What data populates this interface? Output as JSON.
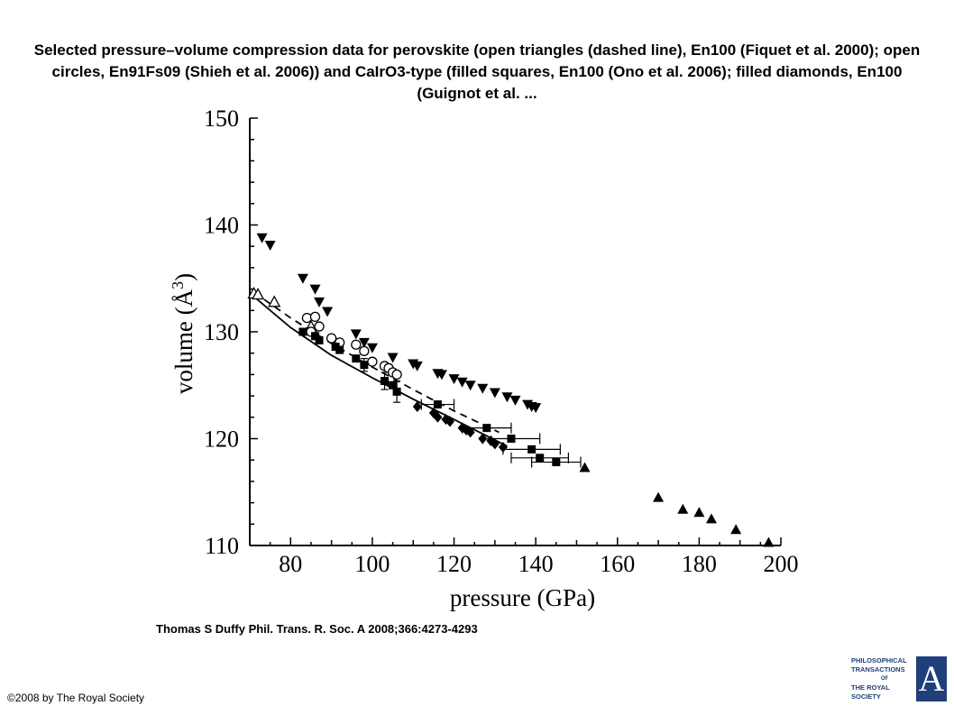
{
  "title": "Selected pressure–volume compression data for perovskite (open triangles (dashed line), En100 (Fiquet et al. 2000); open circles, En91Fs09 (Shieh et al. 2006)) and CaIrO3-type (filled squares, En100 (Ono et al. 2006); filled diamonds, En100 (Guignot et al. ...",
  "credit": "Thomas S Duffy Phil. Trans. R. Soc. A 2008;366:4273-4293",
  "copyright": "©2008 by The Royal Society",
  "logo": {
    "lines": [
      "PHILOSOPHICAL",
      "TRANSACTIONS",
      "OF",
      "THE ROYAL",
      "SOCIETY"
    ],
    "letter": "A",
    "color": "#1f3f7a"
  },
  "chart_data": {
    "type": "scatter",
    "xlabel": "pressure (GPa)",
    "ylabel": "volume (Å3)",
    "xlim": [
      70,
      200
    ],
    "ylim": [
      110,
      150
    ],
    "xticks": [
      "80",
      "100",
      "120",
      "140",
      "160",
      "180",
      "200"
    ],
    "yticks": [
      "110",
      "120",
      "130",
      "140",
      "150"
    ],
    "series": [
      {
        "marker": "triangle-down-filled",
        "x": [
          73,
          75,
          83,
          86,
          87,
          89,
          96,
          98,
          100,
          105,
          110,
          111,
          116,
          117,
          120,
          122,
          124,
          127,
          130,
          133,
          135,
          138,
          139,
          140
        ],
        "y": [
          138.8,
          138.1,
          135.0,
          134.0,
          132.8,
          131.9,
          129.8,
          129.0,
          128.5,
          127.6,
          127.0,
          126.8,
          126.1,
          126.0,
          125.6,
          125.3,
          125.0,
          124.7,
          124.3,
          123.9,
          123.6,
          123.2,
          123.0,
          122.9
        ]
      },
      {
        "marker": "triangle-up-open",
        "x": [
          71,
          72,
          76,
          85
        ],
        "y": [
          133.6,
          133.5,
          132.8,
          130.5
        ]
      },
      {
        "marker": "circle-open",
        "x": [
          84,
          85,
          86,
          87,
          90,
          92,
          96,
          98,
          100,
          103,
          104,
          105,
          106
        ],
        "y": [
          131.3,
          130.0,
          131.4,
          130.5,
          129.4,
          129.0,
          128.8,
          128.2,
          127.2,
          126.8,
          126.6,
          126.2,
          126.0
        ]
      },
      {
        "marker": "square-filled",
        "x": [
          83,
          86,
          87,
          91,
          92,
          96,
          98,
          103,
          105,
          106,
          116,
          128,
          134,
          139,
          141,
          145
        ],
        "y": [
          130.0,
          129.6,
          129.2,
          128.6,
          128.3,
          127.5,
          126.9,
          125.4,
          125.0,
          124.4,
          123.2,
          121.0,
          120.0,
          119.0,
          118.2,
          117.8
        ]
      },
      {
        "marker": "diamond-filled",
        "x": [
          111,
          115,
          116,
          118,
          119,
          122,
          123,
          124,
          127,
          129,
          130,
          132
        ],
        "y": [
          123.0,
          122.4,
          122.0,
          121.8,
          121.6,
          121.0,
          120.8,
          120.6,
          120.0,
          119.8,
          119.5,
          119.2
        ]
      },
      {
        "marker": "triangle-up-filled",
        "x": [
          152,
          170,
          176,
          180,
          183,
          189,
          197
        ],
        "y": [
          117.3,
          114.5,
          113.4,
          113.1,
          112.5,
          111.5,
          110.3
        ]
      }
    ],
    "fit_lines": [
      {
        "style": "dashed",
        "x": [
          71,
          80,
          90,
          100,
          110,
          120,
          131
        ],
        "y": [
          133.7,
          131.3,
          128.9,
          126.7,
          124.6,
          122.6,
          120.6
        ]
      },
      {
        "style": "solid",
        "x": [
          71,
          80,
          90,
          100,
          110,
          120,
          133
        ],
        "y": [
          133.3,
          130.4,
          127.8,
          125.7,
          123.7,
          121.8,
          119.3
        ]
      }
    ],
    "error_bars": [
      {
        "x": 116,
        "y": 123.2,
        "xerr": 4
      },
      {
        "x": 128,
        "y": 121.0,
        "xerr": 6
      },
      {
        "x": 134,
        "y": 120.0,
        "xerr": 7
      },
      {
        "x": 139,
        "y": 119.0,
        "xerr": 7
      },
      {
        "x": 141,
        "y": 118.2,
        "xerr": 7
      },
      {
        "x": 145,
        "y": 117.8,
        "xerr": 6
      },
      {
        "x": 106,
        "y": 124.4,
        "yerr": 1.0
      },
      {
        "x": 103,
        "y": 125.4,
        "yerr": 0.8
      },
      {
        "x": 98,
        "y": 126.9,
        "yerr": 0.6
      }
    ]
  }
}
